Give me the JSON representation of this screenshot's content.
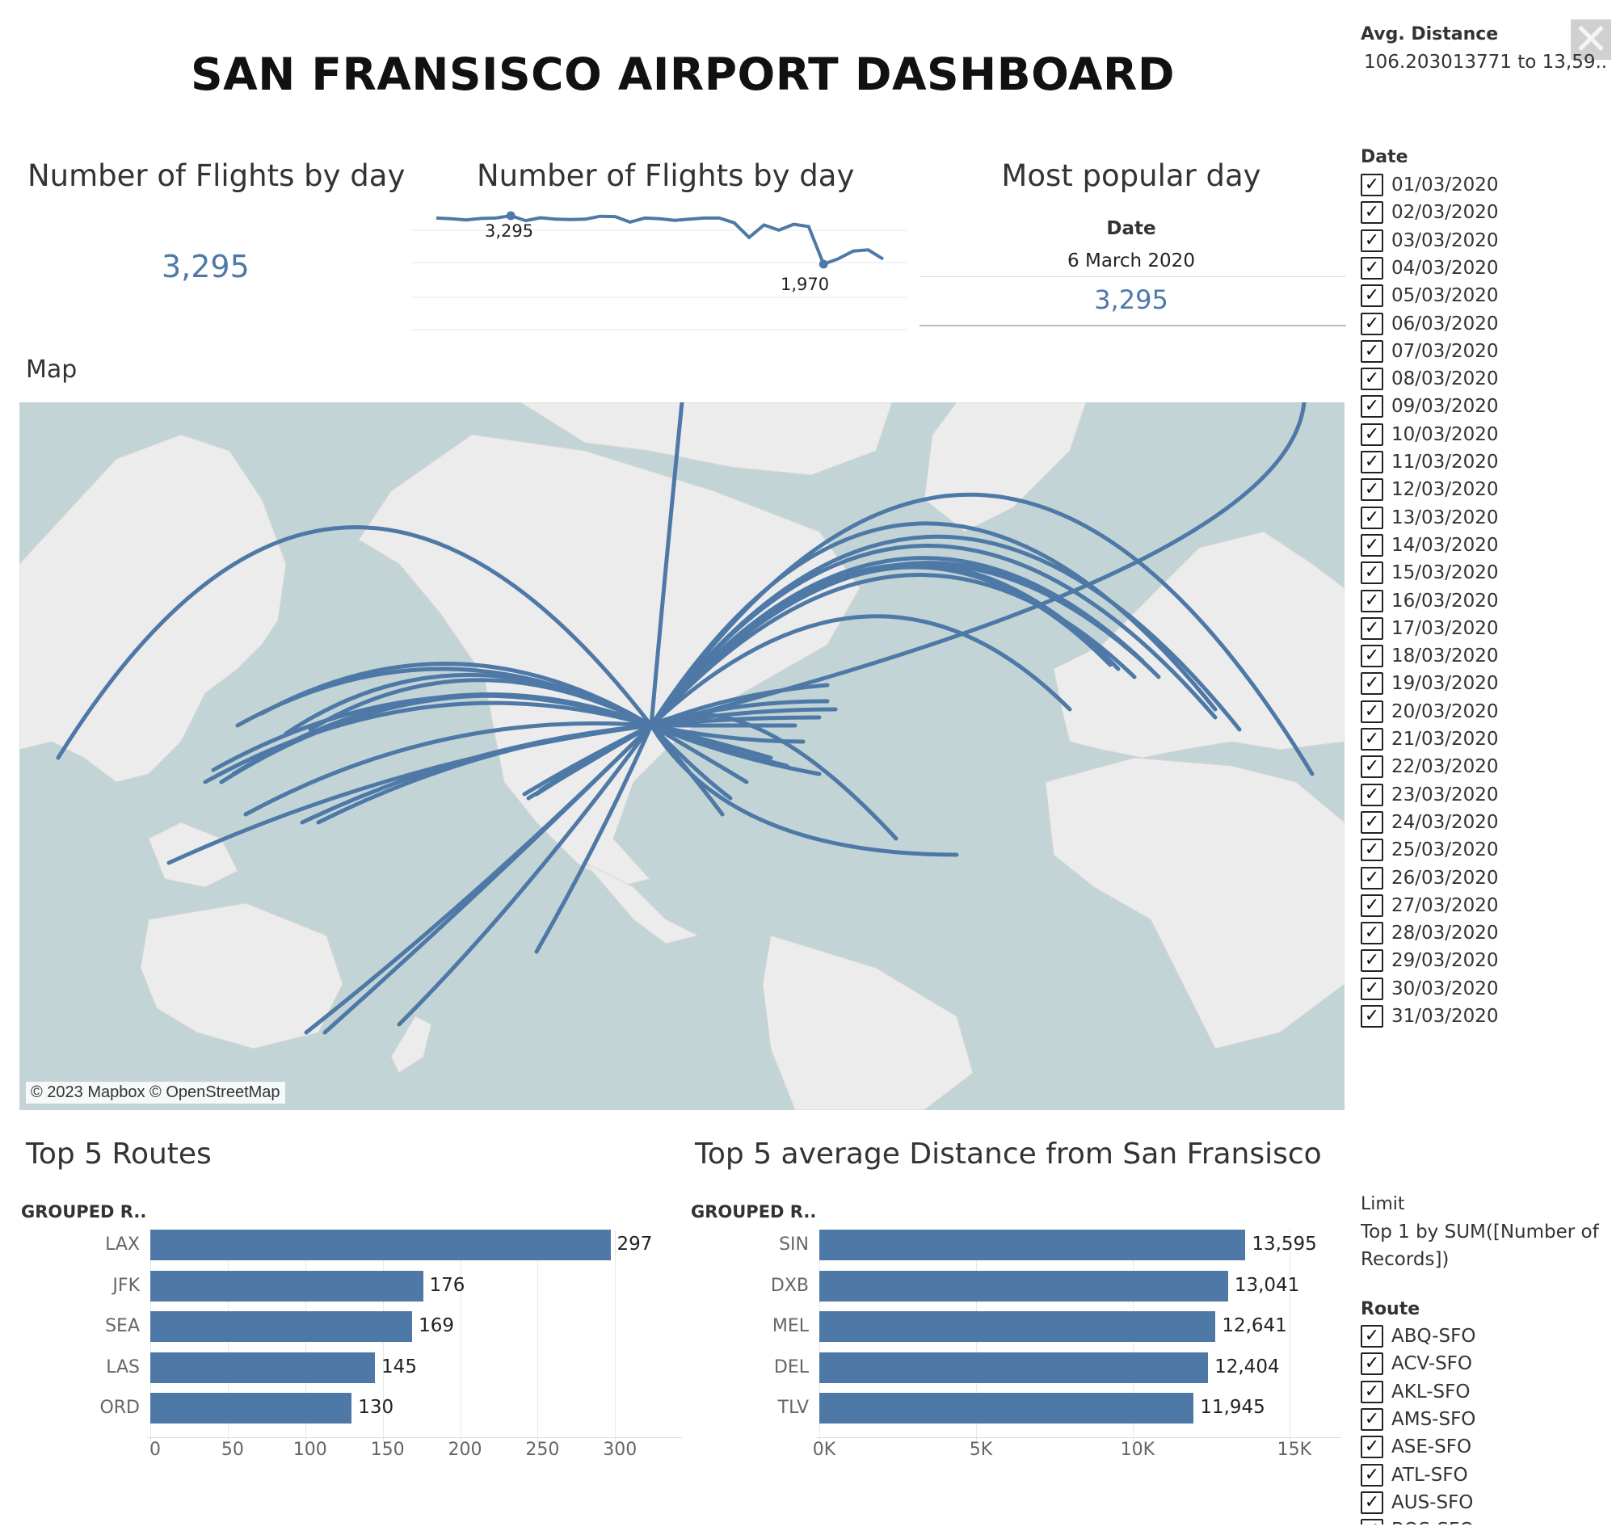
{
  "dashboard_title": "SAN FRANSISCO AIRPORT DASHBOARD",
  "kpi_panel": {
    "title": "Number of Flights by day",
    "value": "3,295"
  },
  "sparkline_panel": {
    "title": "Number of Flights by day",
    "max_label": "3,295",
    "min_label": "1,970"
  },
  "popular_day": {
    "title": "Most popular day",
    "date_header": "Date",
    "date_value": "6 March 2020",
    "count": "3,295"
  },
  "map": {
    "title": "Map",
    "credit": "© 2023 Mapbox © OpenStreetMap",
    "water_color": "#c2d4d6",
    "land_color": "#ececec",
    "route_color": "#4e79a7"
  },
  "top_routes": {
    "title": "Top 5 Routes",
    "dim_header": "GROUPED R..",
    "categories": [
      "LAX",
      "JFK",
      "SEA",
      "LAS",
      "ORD"
    ],
    "values": [
      297,
      176,
      169,
      145,
      130
    ],
    "value_labels": [
      "297",
      "176",
      "169",
      "145",
      "130"
    ],
    "ticks": [
      0,
      50,
      100,
      150,
      200,
      250,
      300
    ],
    "tick_labels": [
      "0",
      "50",
      "100",
      "150",
      "200",
      "250",
      "300"
    ]
  },
  "top_distance": {
    "title": "Top 5 average Distance from San Fransisco",
    "dim_header": "GROUPED R..",
    "categories": [
      "SIN",
      "DXB",
      "MEL",
      "DEL",
      "TLV"
    ],
    "values": [
      13595,
      13041,
      12641,
      12404,
      11945
    ],
    "value_labels": [
      "13,595",
      "13,041",
      "12,641",
      "12,404",
      "11,945"
    ],
    "ticks": [
      0,
      5000,
      10000,
      15000
    ],
    "tick_labels": [
      "0K",
      "5K",
      "10K",
      "15K"
    ]
  },
  "chart_data": [
    {
      "type": "line",
      "x": [
        "01/03/2020",
        "02/03/2020",
        "03/03/2020",
        "04/03/2020",
        "05/03/2020",
        "06/03/2020",
        "07/03/2020",
        "08/03/2020",
        "09/03/2020",
        "10/03/2020",
        "11/03/2020",
        "12/03/2020",
        "13/03/2020",
        "14/03/2020",
        "15/03/2020",
        "16/03/2020",
        "17/03/2020",
        "18/03/2020",
        "19/03/2020",
        "20/03/2020",
        "21/03/2020",
        "22/03/2020",
        "23/03/2020",
        "24/03/2020",
        "25/03/2020",
        "26/03/2020",
        "27/03/2020",
        "28/03/2020",
        "29/03/2020",
        "30/03/2020",
        "31/03/2020"
      ],
      "values": [
        3230,
        3210,
        3180,
        3220,
        3230,
        3295,
        3160,
        3240,
        3200,
        3190,
        3200,
        3280,
        3270,
        3120,
        3230,
        3210,
        3170,
        3200,
        3230,
        3230,
        3100,
        2700,
        3040,
        2900,
        3060,
        3000,
        1970,
        2120,
        2330,
        2360,
        2110
      ],
      "series_color": "#4e79a7",
      "annotations": [
        {
          "x": "06/03/2020",
          "label": "3,295"
        },
        {
          "x": "27/03/2020",
          "label": "1,970"
        }
      ]
    },
    {
      "type": "bar",
      "orientation": "horizontal",
      "title": "Top 5 Routes",
      "categories": [
        "LAX",
        "JFK",
        "SEA",
        "LAS",
        "ORD"
      ],
      "values": [
        297,
        176,
        169,
        145,
        130
      ],
      "xlim": [
        0,
        340
      ]
    },
    {
      "type": "bar",
      "orientation": "horizontal",
      "title": "Top 5 average Distance from San Fransisco",
      "categories": [
        "SIN",
        "DXB",
        "MEL",
        "DEL",
        "TLV"
      ],
      "values": [
        13595,
        13041,
        12641,
        12404,
        11945
      ],
      "xlim": [
        0,
        16500
      ]
    }
  ],
  "filters": {
    "avg_distance": {
      "label": "Avg. Distance",
      "value": "106.203013771 to 13,59.."
    },
    "date": {
      "label": "Date",
      "check_mark": "✓",
      "items": [
        "01/03/2020",
        "02/03/2020",
        "03/03/2020",
        "04/03/2020",
        "05/03/2020",
        "06/03/2020",
        "07/03/2020",
        "08/03/2020",
        "09/03/2020",
        "10/03/2020",
        "11/03/2020",
        "12/03/2020",
        "13/03/2020",
        "14/03/2020",
        "15/03/2020",
        "16/03/2020",
        "17/03/2020",
        "18/03/2020",
        "19/03/2020",
        "20/03/2020",
        "21/03/2020",
        "22/03/2020",
        "23/03/2020",
        "24/03/2020",
        "25/03/2020",
        "26/03/2020",
        "27/03/2020",
        "28/03/2020",
        "29/03/2020",
        "30/03/2020",
        "31/03/2020"
      ]
    },
    "limit": {
      "label": "Limit",
      "line1": "Top 1 by SUM([Number of",
      "line2": "Records])"
    },
    "route": {
      "label": "Route",
      "items": [
        "ABQ-SFO",
        "ACV-SFO",
        "AKL-SFO",
        "AMS-SFO",
        "ASE-SFO",
        "ATL-SFO",
        "AUS-SFO",
        "BOS-SFO"
      ]
    }
  },
  "close_glyph": "✕"
}
